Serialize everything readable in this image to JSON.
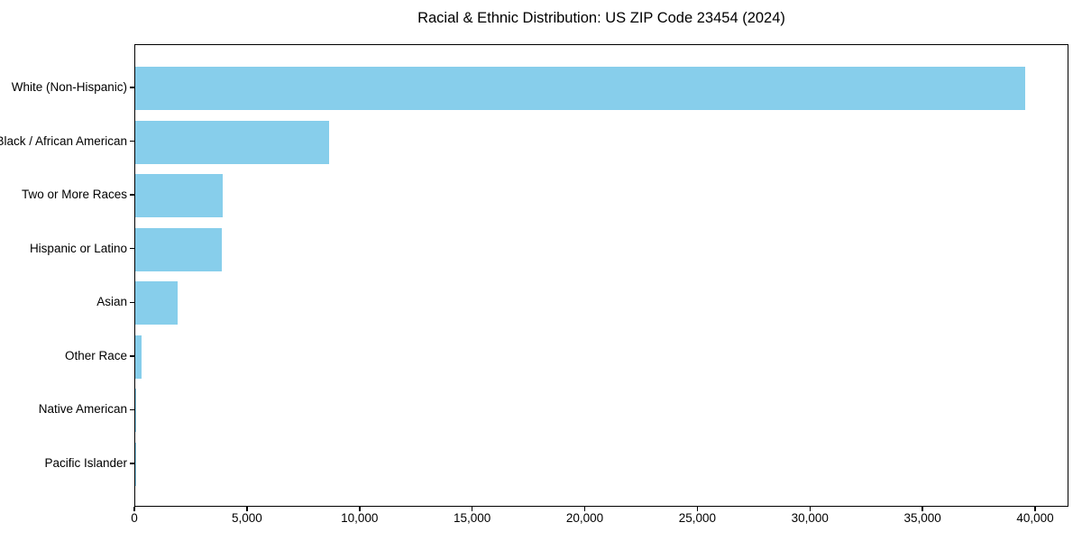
{
  "figure": {
    "background": "#ffffff"
  },
  "chart_data": {
    "type": "bar",
    "orientation": "horizontal",
    "title": "Racial & Ethnic Distribution: US ZIP Code 23454 (2024)",
    "categories": [
      "White (Non-Hispanic)",
      "Black / African American",
      "Two or More Races",
      "Hispanic or Latino",
      "Asian",
      "Other Race",
      "Native American",
      "Pacific Islander"
    ],
    "values": [
      39500,
      8600,
      3900,
      3850,
      1900,
      300,
      50,
      25
    ],
    "xlabel": "",
    "ylabel": "",
    "xlim": [
      0,
      41480
    ],
    "x_ticks": [
      0,
      5000,
      10000,
      15000,
      20000,
      25000,
      30000,
      35000,
      40000
    ],
    "x_tick_labels": [
      "0",
      "5,000",
      "10,000",
      "15,000",
      "20,000",
      "25,000",
      "30,000",
      "35,000",
      "40,000"
    ],
    "bar_color": "#87CEEB",
    "axis_color": "#000000",
    "text_color": "#000000",
    "grid": false,
    "legend": null
  }
}
